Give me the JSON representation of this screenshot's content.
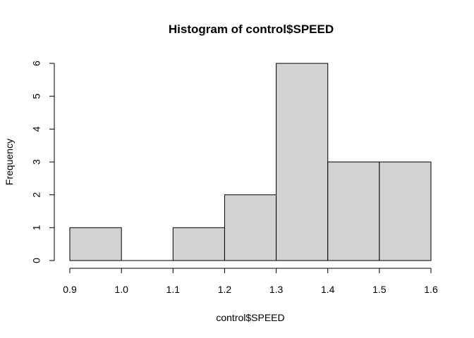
{
  "chart_data": {
    "type": "bar",
    "title": "Histogram of control$SPEED",
    "xlabel": "control$SPEED",
    "ylabel": "Frequency",
    "bins": [
      {
        "x0": 0.9,
        "x1": 1.0,
        "count": 1
      },
      {
        "x0": 1.0,
        "x1": 1.1,
        "count": 0
      },
      {
        "x0": 1.1,
        "x1": 1.2,
        "count": 1
      },
      {
        "x0": 1.2,
        "x1": 1.3,
        "count": 2
      },
      {
        "x0": 1.3,
        "x1": 1.4,
        "count": 6
      },
      {
        "x0": 1.4,
        "x1": 1.5,
        "count": 3
      },
      {
        "x0": 1.5,
        "x1": 1.6,
        "count": 3
      }
    ],
    "xlim": [
      0.9,
      1.6
    ],
    "ylim": [
      0,
      6
    ],
    "x_ticks": [
      "0.9",
      "1.0",
      "1.1",
      "1.2",
      "1.3",
      "1.4",
      "1.5",
      "1.6"
    ],
    "y_ticks": [
      "0",
      "1",
      "2",
      "3",
      "4",
      "5",
      "6"
    ],
    "grid": false,
    "colors": {
      "bar_fill": "#d3d3d3",
      "bar_stroke": "#000000",
      "axis": "#000000"
    }
  }
}
